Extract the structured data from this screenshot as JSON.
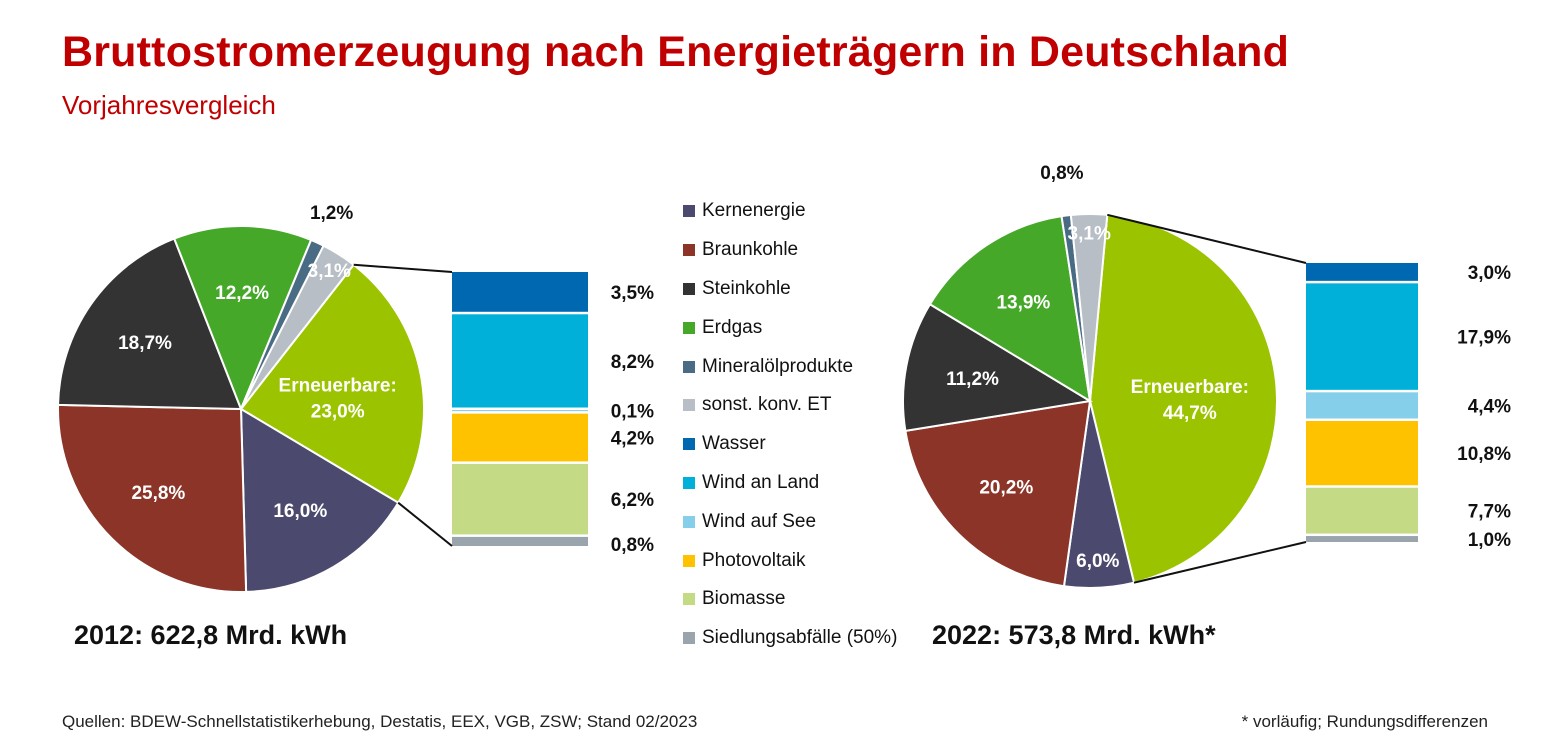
{
  "header": {
    "title": "Bruttostromerzeugung nach Energieträgern in Deutschland",
    "subtitle": "Vorjahresvergleich"
  },
  "legend": [
    {
      "label": "Kernenergie",
      "color": "#4b4a6e"
    },
    {
      "label": "Braunkohle",
      "color": "#8b3427"
    },
    {
      "label": "Steinkohle",
      "color": "#333333"
    },
    {
      "label": "Erdgas",
      "color": "#46a829"
    },
    {
      "label": "Mineralölprodukte",
      "color": "#4a6b84"
    },
    {
      "label": "sonst. konv. ET",
      "color": "#b7bec6"
    },
    {
      "label": "Wasser",
      "color": "#0068b1"
    },
    {
      "label": "Wind an Land",
      "color": "#00b0d8"
    },
    {
      "label": "Wind auf See",
      "color": "#86cfea"
    },
    {
      "label": "Photovoltaik",
      "color": "#fec200"
    },
    {
      "label": "Biomasse",
      "color": "#c4da84"
    },
    {
      "label": "Siedlungsabfälle (50%)",
      "color": "#9aa4ad"
    }
  ],
  "footer": {
    "source": "Quellen: BDEW-Schnellstatistikerhebung, Destatis, EEX, VGB, ZSW; Stand 02/2023",
    "note": "* vorläufig; Rundungsdifferenzen"
  },
  "chart_data": [
    {
      "type": "pie",
      "year_label": "2012: 622,8 Mrd. kWh",
      "slices": [
        {
          "name": "Erneuerbare",
          "value": 23.0,
          "label": "Erneuerbare:\n23,0%",
          "color": "#9bc300"
        },
        {
          "name": "Kernenergie",
          "value": 16.0,
          "label": "16,0%",
          "color": "#4b4a6e"
        },
        {
          "name": "Braunkohle",
          "value": 25.8,
          "label": "25,8%",
          "color": "#8b3427"
        },
        {
          "name": "Steinkohle",
          "value": 18.7,
          "label": "18,7%",
          "color": "#333333"
        },
        {
          "name": "Erdgas",
          "value": 12.2,
          "label": "12,2%",
          "color": "#46a829"
        },
        {
          "name": "Mineralölprodukte",
          "value": 1.2,
          "label": "1,2%",
          "color": "#4a6b84"
        },
        {
          "name": "sonst. konv. ET",
          "value": 3.1,
          "label": "3,1%",
          "color": "#b7bec6"
        }
      ],
      "breakdown": {
        "of": "Erneuerbare",
        "segments": [
          {
            "name": "Wasser",
            "value": 3.5,
            "label": "3,5%",
            "color": "#0068b1"
          },
          {
            "name": "Wind an Land",
            "value": 8.2,
            "label": "8,2%",
            "color": "#00b0d8"
          },
          {
            "name": "Wind auf See",
            "value": 0.1,
            "label": "0,1%",
            "color": "#86cfea"
          },
          {
            "name": "Photovoltaik",
            "value": 4.2,
            "label": "4,2%",
            "color": "#fec200"
          },
          {
            "name": "Biomasse",
            "value": 6.2,
            "label": "6,2%",
            "color": "#c4da84"
          },
          {
            "name": "Siedlungsabfälle (50%)",
            "value": 0.8,
            "label": "0,8%",
            "color": "#9aa4ad"
          }
        ]
      }
    },
    {
      "type": "pie",
      "year_label": "2022: 573,8 Mrd. kWh*",
      "slices": [
        {
          "name": "Erneuerbare",
          "value": 44.7,
          "label": "Erneuerbare:\n44,7%",
          "color": "#9bc300"
        },
        {
          "name": "Kernenergie",
          "value": 6.0,
          "label": "6,0%",
          "color": "#4b4a6e"
        },
        {
          "name": "Braunkohle",
          "value": 20.2,
          "label": "20,2%",
          "color": "#8b3427"
        },
        {
          "name": "Steinkohle",
          "value": 11.2,
          "label": "11,2%",
          "color": "#333333"
        },
        {
          "name": "Erdgas",
          "value": 13.9,
          "label": "13,9%",
          "color": "#46a829"
        },
        {
          "name": "Mineralölprodukte",
          "value": 0.8,
          "label": "0,8%",
          "color": "#4a6b84"
        },
        {
          "name": "sonst. konv. ET",
          "value": 3.1,
          "label": "3,1%",
          "color": "#b7bec6"
        }
      ],
      "breakdown": {
        "of": "Erneuerbare",
        "segments": [
          {
            "name": "Wasser",
            "value": 3.0,
            "label": "3,0%",
            "color": "#0068b1"
          },
          {
            "name": "Wind an Land",
            "value": 17.9,
            "label": "17,9%",
            "color": "#00b0d8"
          },
          {
            "name": "Wind auf See",
            "value": 4.4,
            "label": "4,4%",
            "color": "#86cfea"
          },
          {
            "name": "Photovoltaik",
            "value": 10.8,
            "label": "10,8%",
            "color": "#fec200"
          },
          {
            "name": "Biomasse",
            "value": 7.7,
            "label": "7,7%",
            "color": "#c4da84"
          },
          {
            "name": "Siedlungsabfälle (50%)",
            "value": 1.0,
            "label": "1,0%",
            "color": "#9aa4ad"
          }
        ]
      }
    }
  ]
}
